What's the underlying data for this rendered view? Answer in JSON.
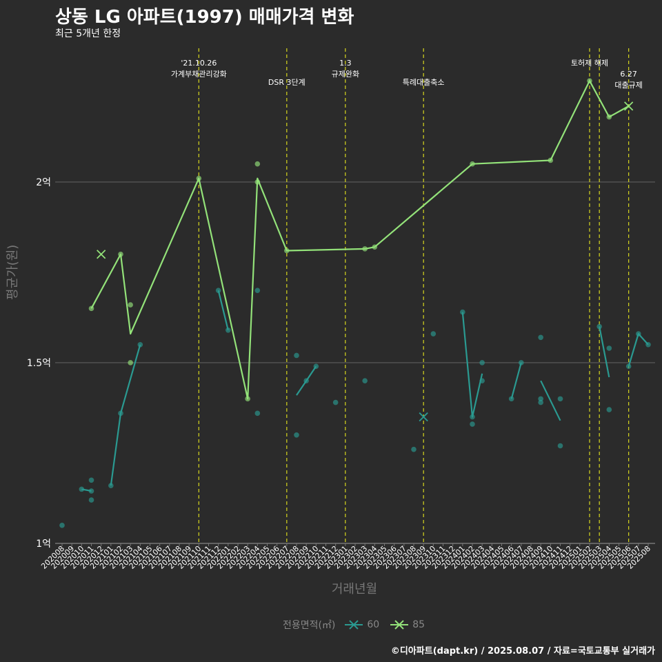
{
  "chart_data": {
    "type": "line",
    "title": "상동 LG 아파트(1997) 매매가격 변화",
    "subtitle": "최근 5개년 한정",
    "xlabel": "거래년월",
    "ylabel": "평균가(원)",
    "ylim": [
      1.0,
      2.37
    ],
    "yticks": [
      {
        "value": 1.0,
        "label": "1억"
      },
      {
        "value": 1.5,
        "label": "1.5억"
      },
      {
        "value": 2.0,
        "label": "2억"
      }
    ],
    "grid": true,
    "categories": [
      "202008",
      "202009",
      "202010",
      "202011",
      "202012",
      "202101",
      "202102",
      "202103",
      "202104",
      "202105",
      "202106",
      "202107",
      "202108",
      "202109",
      "202110",
      "202111",
      "202112",
      "202201",
      "202202",
      "202203",
      "202204",
      "202205",
      "202206",
      "202207",
      "202208",
      "202209",
      "202210",
      "202211",
      "202212",
      "202301",
      "202302",
      "202303",
      "202304",
      "202305",
      "202306",
      "202307",
      "202308",
      "202309",
      "202310",
      "202311",
      "202312",
      "202401",
      "202402",
      "202403",
      "202404",
      "202405",
      "202406",
      "202407",
      "202408",
      "202409",
      "202410",
      "202411",
      "202412",
      "202501",
      "202502",
      "202503",
      "202504",
      "202505",
      "202506",
      "202507",
      "202508"
    ],
    "legend_title": "전용면적(㎡)",
    "legend_position": "bottom",
    "series": [
      {
        "name": "60",
        "color": "#2a9a91",
        "line_segments": [
          [
            [
              "202010",
              1.15
            ],
            [
              "202011",
              1.145
            ]
          ],
          [
            [
              "202101",
              1.16
            ],
            [
              "202102",
              1.36
            ],
            [
              "202104",
              1.55
            ]
          ],
          [
            [
              "202112",
              1.7
            ],
            [
              "202201",
              1.59
            ]
          ],
          [
            [
              "202208",
              1.41
            ],
            [
              "202209",
              1.45
            ],
            [
              "202210",
              1.49
            ]
          ],
          [
            [
              "202401",
              1.64
            ],
            [
              "202402",
              1.35
            ],
            [
              "202403",
              1.47
            ]
          ],
          [
            [
              "202406",
              1.4
            ],
            [
              "202407",
              1.5
            ]
          ],
          [
            [
              "202409",
              1.45
            ],
            [
              "202411",
              1.34
            ]
          ],
          [
            [
              "202503",
              1.6
            ],
            [
              "202504",
              1.46
            ]
          ],
          [
            [
              "202506",
              1.49
            ],
            [
              "202507",
              1.58
            ],
            [
              "202508",
              1.55
            ]
          ]
        ],
        "points": [
          [
            "202008",
            1.05
          ],
          [
            "202010",
            1.15
          ],
          [
            "202011",
            1.145
          ],
          [
            "202011",
            1.175
          ],
          [
            "202011",
            1.12
          ],
          [
            "202101",
            1.16
          ],
          [
            "202102",
            1.36
          ],
          [
            "202104",
            1.55
          ],
          [
            "202112",
            1.7
          ],
          [
            "202201",
            1.59
          ],
          [
            "202204",
            1.7
          ],
          [
            "202204",
            1.36
          ],
          [
            "202208",
            1.52
          ],
          [
            "202208",
            1.3
          ],
          [
            "202209",
            1.45
          ],
          [
            "202210",
            1.49
          ],
          [
            "202212",
            1.39
          ],
          [
            "202303",
            1.45
          ],
          [
            "202308",
            1.26
          ],
          [
            "202310",
            1.58
          ],
          [
            "202401",
            1.64
          ],
          [
            "202402",
            1.35
          ],
          [
            "202402",
            1.33
          ],
          [
            "202403",
            1.5
          ],
          [
            "202403",
            1.45
          ],
          [
            "202406",
            1.4
          ],
          [
            "202407",
            1.5
          ],
          [
            "202409",
            1.57
          ],
          [
            "202409",
            1.4
          ],
          [
            "202409",
            1.39
          ],
          [
            "202411",
            1.4
          ],
          [
            "202411",
            1.27
          ],
          [
            "202503",
            1.6
          ],
          [
            "202504",
            1.54
          ],
          [
            "202504",
            1.37
          ],
          [
            "202506",
            1.49
          ],
          [
            "202507",
            1.58
          ],
          [
            "202508",
            1.55
          ]
        ],
        "x_markers": [
          [
            "202309",
            1.35
          ]
        ]
      },
      {
        "name": "85",
        "color": "#93e279",
        "line_segments": [
          [
            [
              "202011",
              1.65
            ],
            [
              "202102",
              1.8
            ],
            [
              "202103",
              1.58
            ],
            [
              "202110",
              2.01
            ],
            [
              "202203",
              1.4
            ],
            [
              "202204",
              2.01
            ],
            [
              "202207",
              1.81
            ],
            [
              "202303",
              1.815
            ],
            [
              "202304",
              1.82
            ],
            [
              "202402",
              2.05
            ],
            [
              "202410",
              2.06
            ],
            [
              "202502",
              2.28
            ],
            [
              "202504",
              2.18
            ],
            [
              "202506",
              2.21
            ]
          ]
        ],
        "points": [
          [
            "202011",
            1.65
          ],
          [
            "202102",
            1.8
          ],
          [
            "202103",
            1.66
          ],
          [
            "202103",
            1.5
          ],
          [
            "202110",
            2.01
          ],
          [
            "202203",
            1.4
          ],
          [
            "202204",
            2.05
          ],
          [
            "202204",
            2.0
          ],
          [
            "202207",
            1.81
          ],
          [
            "202303",
            1.815
          ],
          [
            "202304",
            1.82
          ],
          [
            "202402",
            2.05
          ],
          [
            "202410",
            2.06
          ],
          [
            "202502",
            2.28
          ],
          [
            "202504",
            2.18
          ]
        ],
        "x_markers": [
          [
            "202012",
            1.8
          ],
          [
            "202506",
            2.21
          ]
        ]
      }
    ],
    "annotations": [
      {
        "x": "202110",
        "lines": [
          "'21.10.26",
          "가계부채관리강화"
        ]
      },
      {
        "x": "202207",
        "lines": [
          "DSR 3단계"
        ]
      },
      {
        "x": "202301",
        "lines": [
          "1.3",
          "규제완화"
        ]
      },
      {
        "x": "202309",
        "lines": [
          "특례대출축소"
        ]
      },
      {
        "x": "202502",
        "lines": [
          "토허제 해제"
        ]
      },
      {
        "x": "202503",
        "lines": []
      },
      {
        "x": "202506",
        "lines": [
          "6.27",
          "대출규제"
        ]
      }
    ]
  },
  "credit": "©디아파트(dapt.kr) / 2025.08.07 / 자료=국토교통부 실거래가"
}
